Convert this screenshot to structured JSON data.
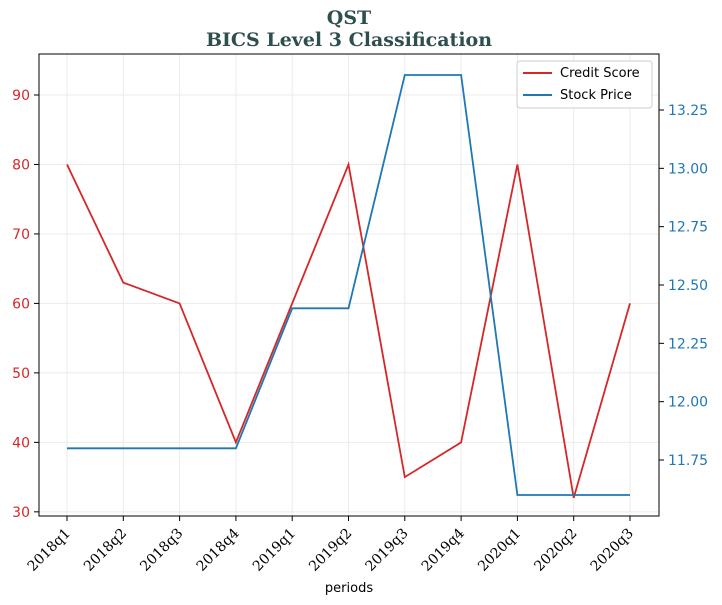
{
  "chart_data": {
    "type": "line",
    "title_line1": "QST",
    "title_line2": "BICS Level 3 Classification",
    "xlabel": "periods",
    "categories": [
      "2018q1",
      "2018q2",
      "2018q3",
      "2018q4",
      "2019q1",
      "2019q2",
      "2019q3",
      "2019q4",
      "2020q1",
      "2020q2",
      "2020q3"
    ],
    "series": [
      {
        "name": "Credit Score",
        "axis": "left",
        "color": "#d62728",
        "values": [
          80,
          63,
          60,
          40,
          60,
          80,
          35,
          40,
          80,
          32,
          60
        ]
      },
      {
        "name": "Stock Price",
        "axis": "right",
        "color": "#1f77b4",
        "values": [
          11.8,
          11.8,
          11.8,
          11.8,
          12.4,
          12.4,
          13.4,
          13.4,
          11.6,
          11.6,
          11.6
        ]
      }
    ],
    "y_left": {
      "min": 29.4,
      "max": 95.9,
      "ticks": [
        30,
        40,
        50,
        60,
        70,
        80,
        90
      ],
      "color": "#d62728"
    },
    "y_right": {
      "min": 11.51,
      "max": 13.49,
      "ticks": [
        "11.75",
        "12.00",
        "12.25",
        "12.50",
        "12.75",
        "13.00",
        "13.25"
      ],
      "color": "#1f77b4"
    },
    "grid": true,
    "legend_position": "top-right",
    "title_color": "#2f4f4f"
  }
}
